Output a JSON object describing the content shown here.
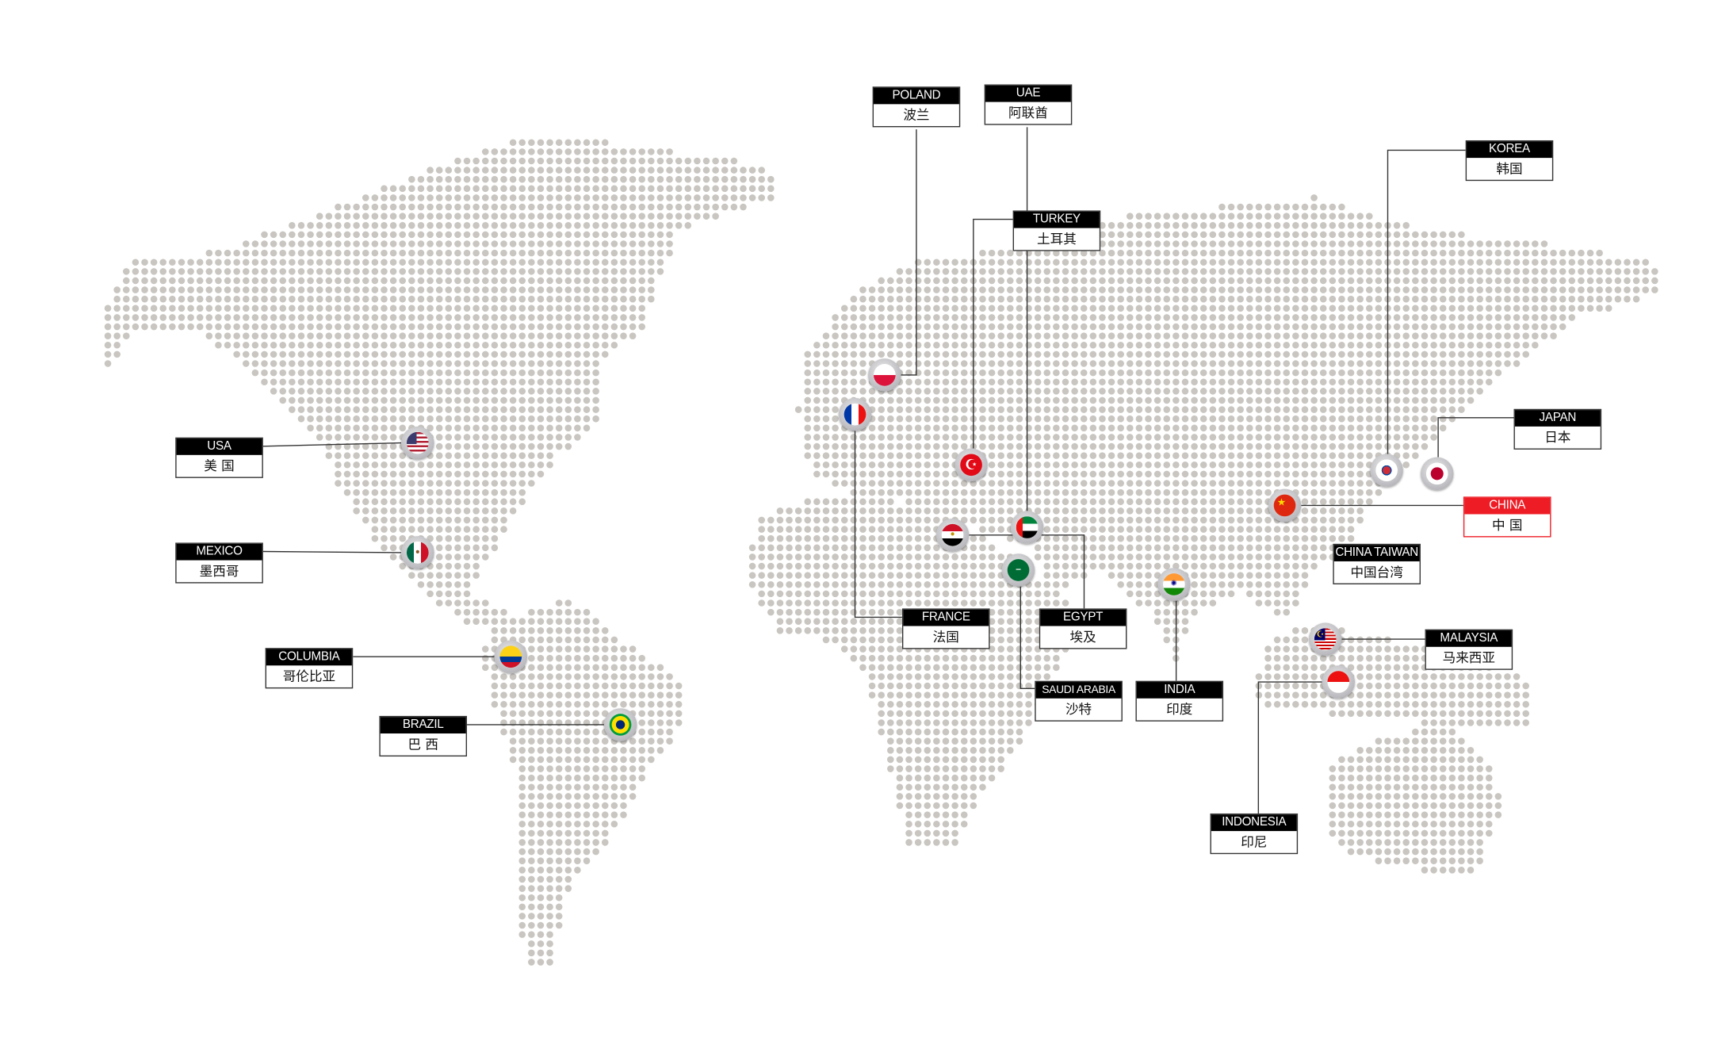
{
  "map": {
    "dot_color": "#c9c6c1",
    "line_color": "#333333",
    "highlight_color": "#ee1c25"
  },
  "countries": {
    "poland": {
      "en": "POLAND",
      "zh": "波兰",
      "flag": "poland-flag-icon"
    },
    "uae": {
      "en": "UAE",
      "zh": "阿联酋",
      "flag": "uae-flag-icon"
    },
    "turkey": {
      "en": "TURKEY",
      "zh": "土耳其",
      "flag": "turkey-flag-icon"
    },
    "korea": {
      "en": "KOREA",
      "zh": "韩国",
      "flag": "korea-flag-icon"
    },
    "japan": {
      "en": "JAPAN",
      "zh": "日本",
      "flag": "japan-flag-icon"
    },
    "china": {
      "en": "CHINA",
      "zh": "中 国",
      "flag": "china-flag-icon",
      "highlighted": true
    },
    "china_taiwan": {
      "en": "CHINA TAIWAN",
      "zh": "中国台湾"
    },
    "malaysia": {
      "en": "MALAYSIA",
      "zh": "马来西亚",
      "flag": "malaysia-flag-icon"
    },
    "indonesia": {
      "en": "INDONESIA",
      "zh": "印尼",
      "flag": "indonesia-flag-icon"
    },
    "india": {
      "en": "INDIA",
      "zh": "印度",
      "flag": "india-flag-icon"
    },
    "saudi_arabia": {
      "en": "SAUDI ARABIA",
      "zh": "沙特",
      "flag": "saudi-flag-icon"
    },
    "egypt": {
      "en": "EGYPT",
      "zh": "埃及",
      "flag": "egypt-flag-icon"
    },
    "france": {
      "en": "FRANCE",
      "zh": "法国",
      "flag": "france-flag-icon"
    },
    "usa": {
      "en": "USA",
      "zh": "美 国",
      "flag": "usa-flag-icon"
    },
    "mexico": {
      "en": "MEXICO",
      "zh": "墨西哥",
      "flag": "mexico-flag-icon"
    },
    "columbia": {
      "en": "COLUMBIA",
      "zh": "哥伦比亚",
      "flag": "columbia-flag-icon"
    },
    "brazil": {
      "en": "BRAZIL",
      "zh": "巴 西",
      "flag": "brazil-flag-icon"
    }
  }
}
